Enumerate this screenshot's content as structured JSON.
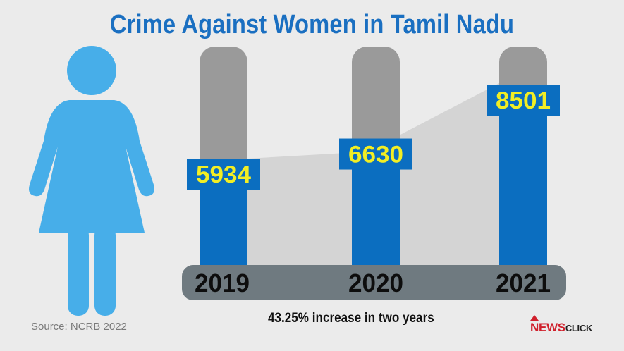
{
  "chart_data": {
    "type": "bar",
    "title": "Crime Against Women in Tamil Nadu",
    "categories": [
      "2019",
      "2020",
      "2021"
    ],
    "values": [
      5934,
      6630,
      8501
    ],
    "ylim": [
      0,
      10000
    ],
    "xlabel": "",
    "ylabel": "",
    "annotation": "43.25% increase in two years"
  },
  "source": "Source: NCRB 2022",
  "logo": {
    "news": "NEWS",
    "click": "CLICK"
  },
  "colors": {
    "title": "#1a6fc1",
    "bar_blue": "#0b6ec0",
    "label_box": "#0b6ec0",
    "label_text": "#f2ee24",
    "track": "#9a9a9a",
    "baseline": "#6f7a80",
    "figure": "#47aee9",
    "trend": "#d4d4d4"
  }
}
